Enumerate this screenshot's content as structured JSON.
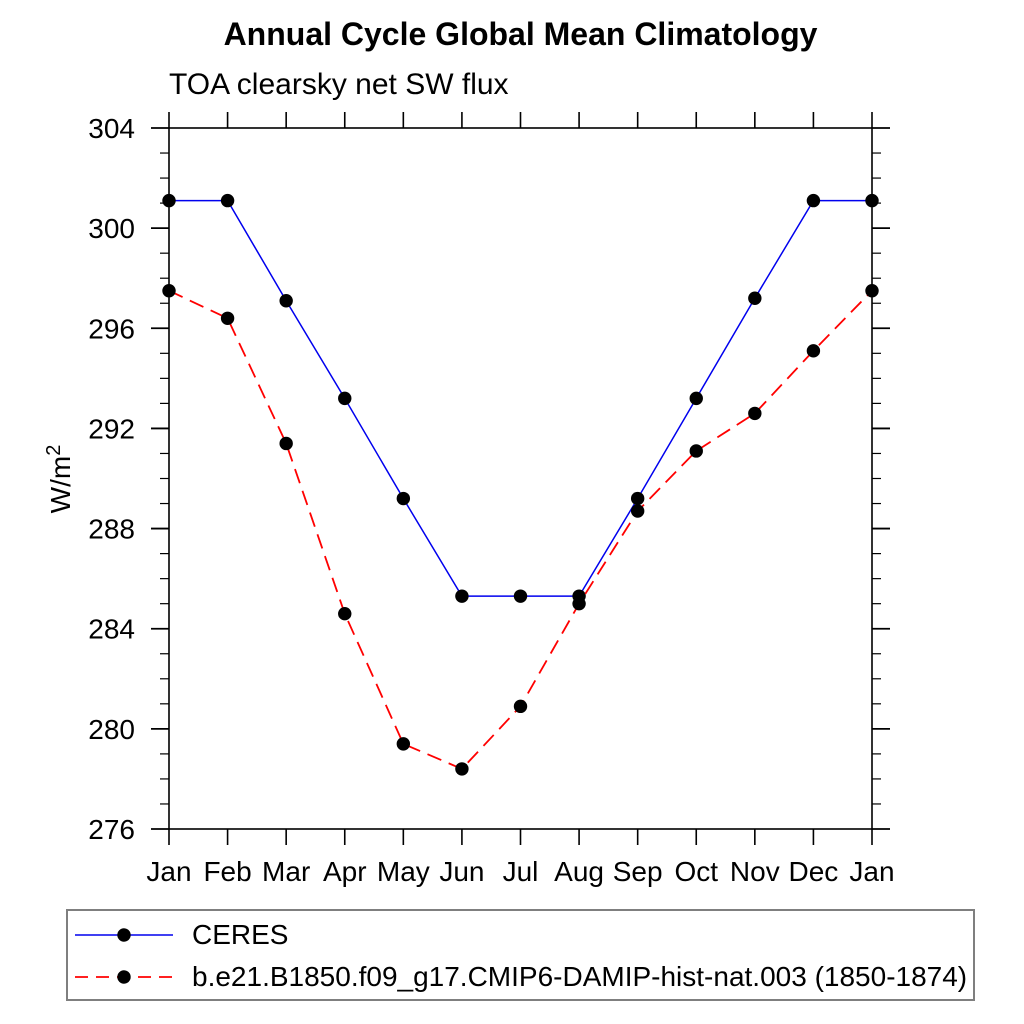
{
  "title": "Annual Cycle Global Mean Climatology",
  "subtitle": "TOA clearsky net SW flux",
  "y_axis_label_base": "W/m",
  "y_axis_label_exponent": "2",
  "chart_data": {
    "type": "line",
    "title": "Annual Cycle Global Mean Climatology",
    "subtitle": "TOA clearsky net SW flux",
    "ylabel": "W/m^2",
    "xlabel": "",
    "categories": [
      "Jan",
      "Feb",
      "Mar",
      "Apr",
      "May",
      "Jun",
      "Jul",
      "Aug",
      "Sep",
      "Oct",
      "Nov",
      "Dec",
      "Jan"
    ],
    "series": [
      {
        "name": "CERES",
        "color": "#0000ee",
        "line_style": "solid",
        "marker": "filled-circle",
        "marker_color": "#000000",
        "values": [
          301.1,
          301.1,
          297.1,
          293.2,
          289.2,
          285.3,
          285.3,
          285.3,
          289.2,
          293.2,
          297.2,
          301.1,
          301.1
        ]
      },
      {
        "name": "b.e21.B1850.f09_g17.CMIP6-DAMIP-hist-nat.003 (1850-1874)",
        "color": "#ff0000",
        "line_style": "dashed",
        "marker": "filled-circle",
        "marker_color": "#000000",
        "values": [
          297.5,
          296.4,
          291.4,
          284.6,
          279.4,
          278.4,
          280.9,
          285.0,
          288.7,
          291.1,
          292.6,
          295.1,
          297.5
        ]
      }
    ],
    "ylim": [
      276,
      304
    ],
    "y_major_ticks": [
      276,
      280,
      284,
      288,
      292,
      296,
      300,
      304
    ],
    "y_minor_step": 1,
    "grid": false,
    "legend_position": "bottom",
    "axis_color": "#000000",
    "legend_border_color": "#7f7f7f"
  }
}
